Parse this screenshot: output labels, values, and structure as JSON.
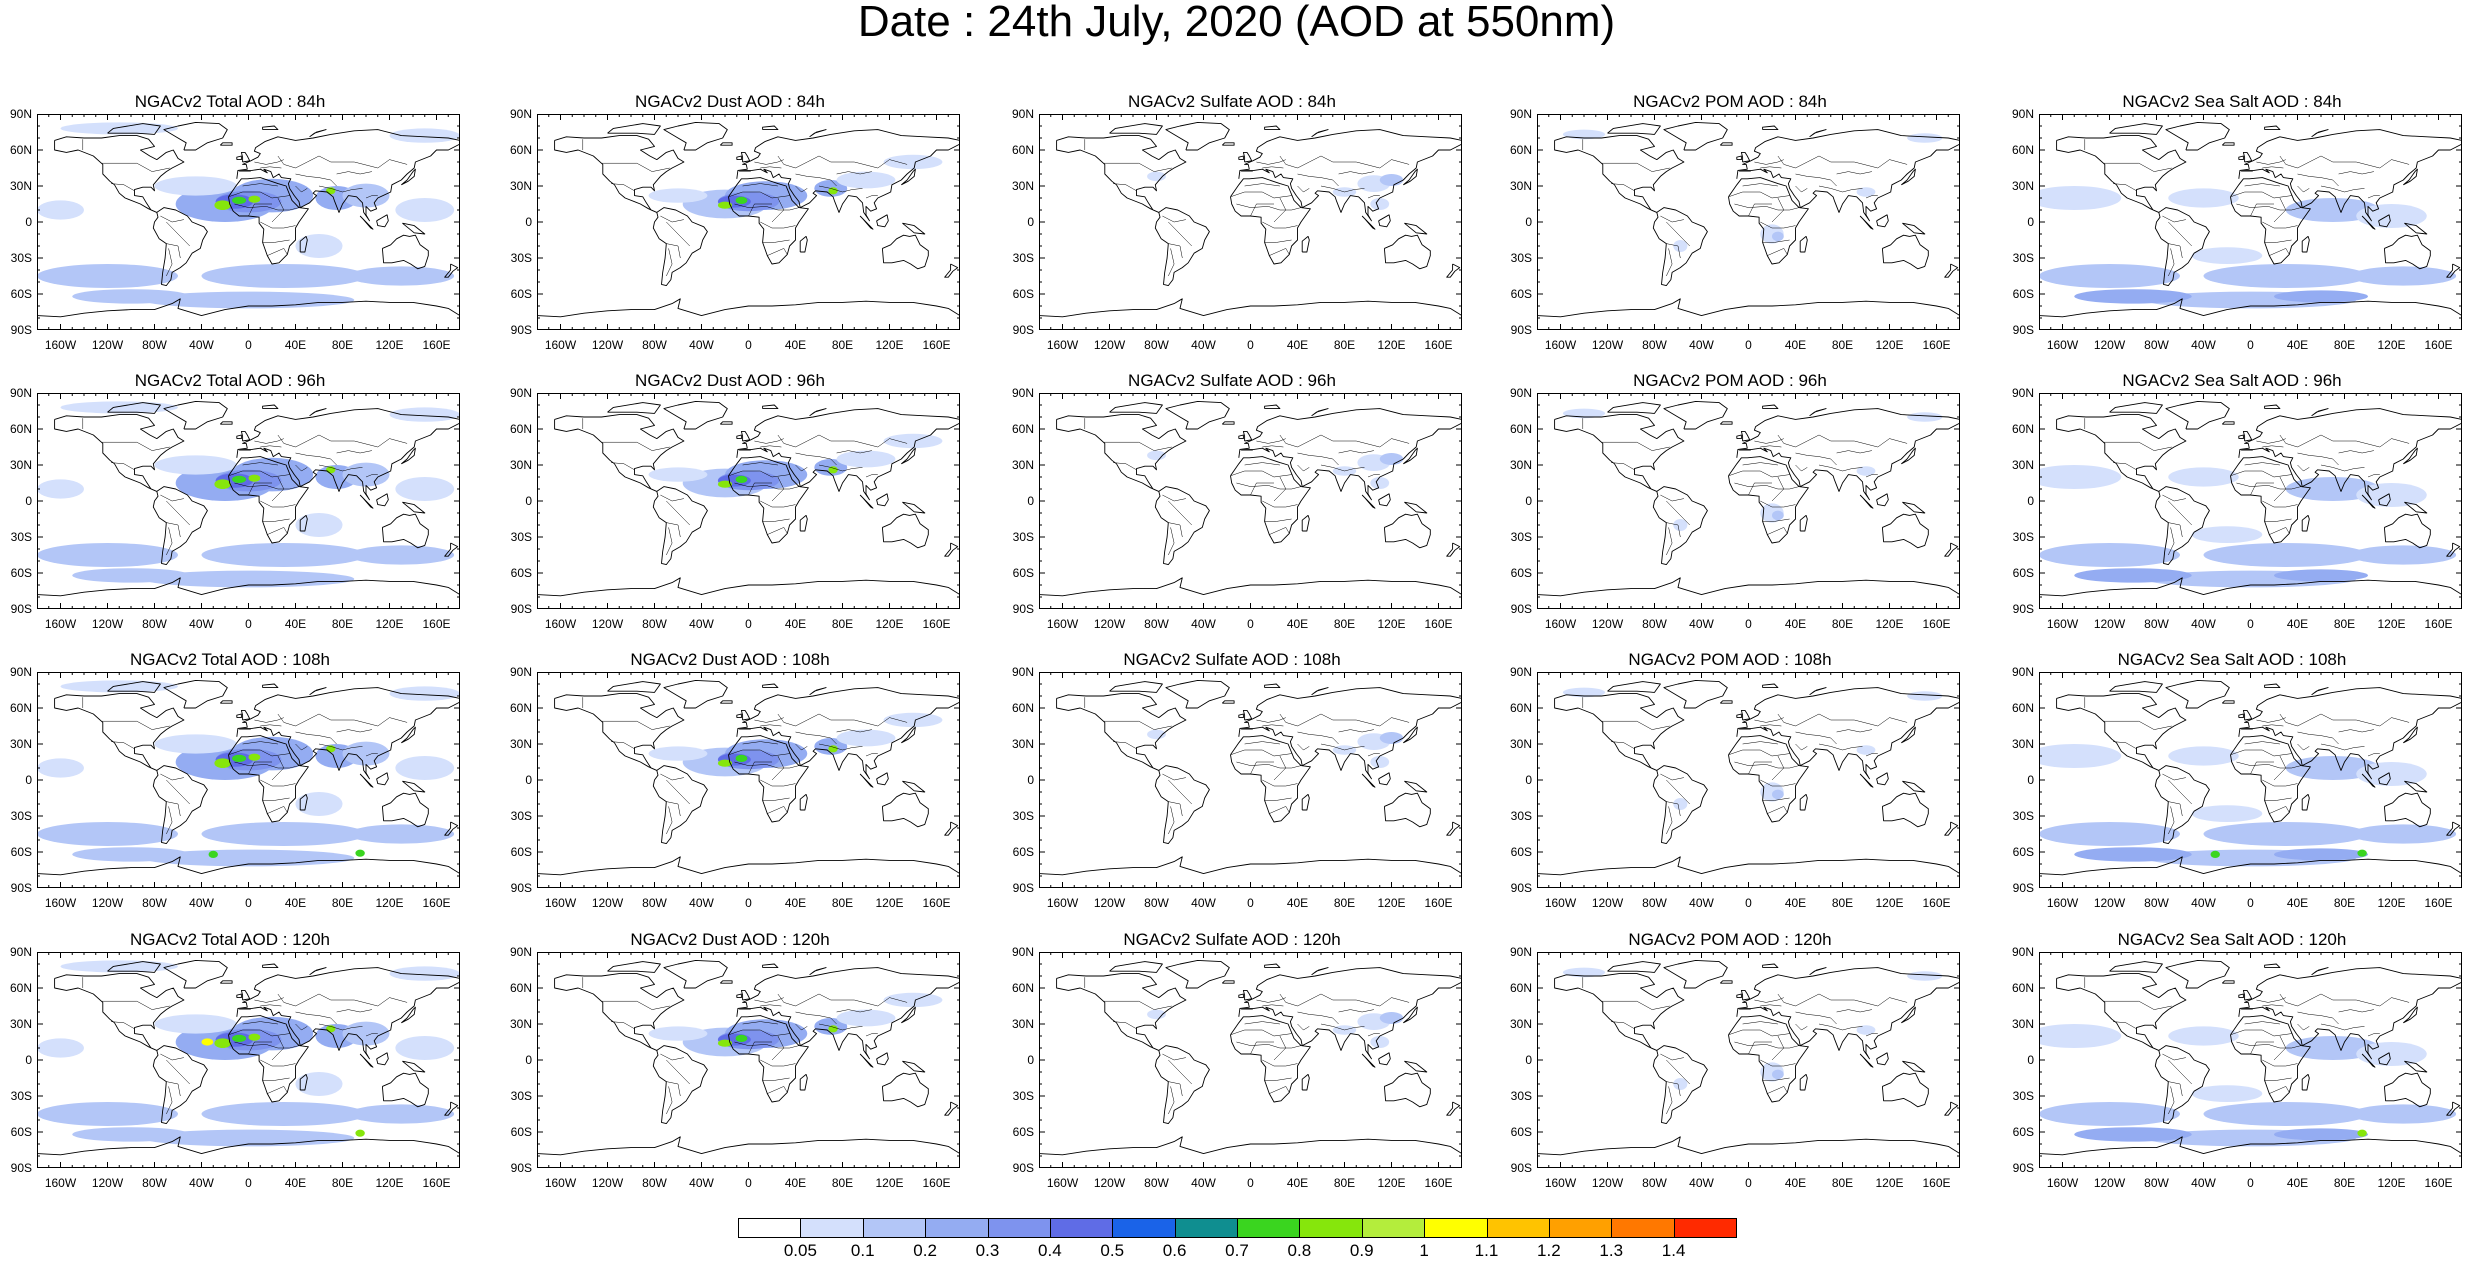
{
  "title": "Date : 24th July, 2020 (AOD at 550nm)",
  "lat_labels": [
    "90N",
    "60N",
    "30N",
    "0",
    "30S",
    "60S",
    "90S"
  ],
  "lon_labels": [
    "160W",
    "120W",
    "80W",
    "40W",
    "0",
    "40E",
    "80E",
    "120E",
    "160E"
  ],
  "panels": [
    {
      "title": "NGACv2 Total AOD : 84h",
      "field": "total",
      "hour": "84h"
    },
    {
      "title": "NGACv2 Dust AOD : 84h",
      "field": "dust",
      "hour": "84h"
    },
    {
      "title": "NGACv2 Sulfate AOD : 84h",
      "field": "sulfate",
      "hour": "84h"
    },
    {
      "title": "NGACv2 POM AOD : 84h",
      "field": "pom",
      "hour": "84h"
    },
    {
      "title": "NGACv2 Sea Salt AOD : 84h",
      "field": "seasalt",
      "hour": "84h"
    },
    {
      "title": "NGACv2 Total AOD : 96h",
      "field": "total",
      "hour": "96h"
    },
    {
      "title": "NGACv2 Dust AOD : 96h",
      "field": "dust",
      "hour": "96h"
    },
    {
      "title": "NGACv2 Sulfate AOD : 96h",
      "field": "sulfate",
      "hour": "96h"
    },
    {
      "title": "NGACv2 POM AOD : 96h",
      "field": "pom",
      "hour": "96h"
    },
    {
      "title": "NGACv2 Sea Salt AOD : 96h",
      "field": "seasalt",
      "hour": "96h"
    },
    {
      "title": "NGACv2 Total AOD : 108h",
      "field": "total",
      "hour": "108h"
    },
    {
      "title": "NGACv2 Dust AOD : 108h",
      "field": "dust",
      "hour": "108h"
    },
    {
      "title": "NGACv2 Sulfate AOD : 108h",
      "field": "sulfate",
      "hour": "108h"
    },
    {
      "title": "NGACv2 POM AOD : 108h",
      "field": "pom",
      "hour": "108h"
    },
    {
      "title": "NGACv2 Sea Salt AOD : 108h",
      "field": "seasalt",
      "hour": "108h"
    },
    {
      "title": "NGACv2 Total AOD : 120h",
      "field": "total",
      "hour": "120h"
    },
    {
      "title": "NGACv2 Dust AOD : 120h",
      "field": "dust",
      "hour": "120h"
    },
    {
      "title": "NGACv2 Sulfate AOD : 120h",
      "field": "sulfate",
      "hour": "120h"
    },
    {
      "title": "NGACv2 POM AOD : 120h",
      "field": "pom",
      "hour": "120h"
    },
    {
      "title": "NGACv2 Sea Salt  AOD : 120h",
      "field": "seasalt",
      "hour": "120h"
    }
  ],
  "colorbar": {
    "labels": [
      "0.05",
      "0.1",
      "0.2",
      "0.3",
      "0.4",
      "0.5",
      "0.6",
      "0.7",
      "0.8",
      "0.9",
      "1",
      "1.1",
      "1.2",
      "1.3",
      "1.4"
    ],
    "colors": [
      "#ffffff",
      "#d4e0fc",
      "#b3c6f7",
      "#94acf2",
      "#7e93ee",
      "#5f6ce6",
      "#1a63e8",
      "#0f8e90",
      "#3ad51f",
      "#86e60c",
      "#b4ed3c",
      "#ffff00",
      "#ffc300",
      "#ffa000",
      "#ff7800",
      "#ff2a00"
    ]
  }
}
